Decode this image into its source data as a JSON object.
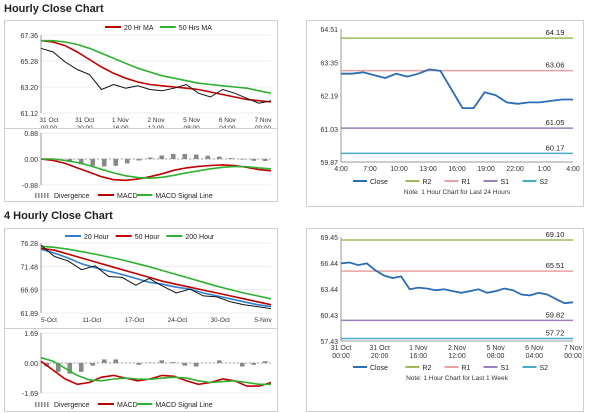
{
  "sections": [
    {
      "title": "Hourly Close Chart"
    },
    {
      "title": "4 Hourly Close Chart"
    }
  ],
  "colors": {
    "close": "#2a6db5",
    "ma20": "#c00000",
    "ma50": "#30b030",
    "hour20": "#2f7fd0",
    "r2": "#9bbb59",
    "r1": "#e8a0a0",
    "s1": "#9b7fc0",
    "s2": "#4bacc6",
    "divergence": "#888888"
  },
  "chart_data": [
    {
      "type": "line",
      "panel": "hourly-price",
      "legend": [
        "20 Hr MA",
        "50 Hrs MA"
      ],
      "x_ticks": [
        "31 Oct\n00:00",
        "31 Oct\n20:00",
        "1 Nov\n16:00",
        "2 Nov\n12:00",
        "5 Nov\n08:00",
        "6 Nov\n04:00",
        "7 Nov\n00:00"
      ],
      "y_ticks": [
        67.36,
        65.28,
        63.2,
        61.12
      ],
      "ylim": [
        61.12,
        67.36
      ],
      "series": [
        {
          "name": "20 Hr MA",
          "values": [
            66.9,
            66.8,
            66.5,
            66.0,
            65.4,
            64.8,
            64.3,
            63.9,
            63.6,
            63.4,
            63.3,
            63.2,
            63.1,
            63.0,
            62.8,
            62.6,
            62.4,
            62.2,
            62.1,
            62.0
          ]
        },
        {
          "name": "50 Hrs MA",
          "values": [
            66.9,
            66.9,
            66.8,
            66.6,
            66.3,
            65.9,
            65.5,
            65.1,
            64.7,
            64.4,
            64.1,
            63.9,
            63.7,
            63.5,
            63.4,
            63.3,
            63.2,
            63.1,
            62.9,
            62.7
          ]
        },
        {
          "values": [
            66.3,
            66.0,
            65.2,
            64.6,
            64.2,
            63.0,
            63.4,
            63.1,
            63.3,
            63.0,
            62.9,
            63.1,
            63.4,
            62.7,
            62.4,
            63.0,
            62.7,
            62.3,
            61.9,
            62.1
          ]
        }
      ]
    },
    {
      "type": "line",
      "panel": "hourly-macd",
      "legend": [
        "Divergence",
        "MACD",
        "MACD Signal Line"
      ],
      "y_ticks": [
        0.88,
        0.0,
        -0.88
      ],
      "ylim": [
        -0.88,
        0.88
      ],
      "series": [
        {
          "name": "MACD",
          "values": [
            0.0,
            -0.05,
            -0.15,
            -0.3,
            -0.45,
            -0.6,
            -0.7,
            -0.72,
            -0.68,
            -0.6,
            -0.5,
            -0.38,
            -0.3,
            -0.25,
            -0.22,
            -0.2,
            -0.22,
            -0.28,
            -0.36,
            -0.4
          ]
        },
        {
          "name": "MACD Signal Line",
          "values": [
            0.0,
            0.0,
            -0.05,
            -0.12,
            -0.22,
            -0.35,
            -0.47,
            -0.57,
            -0.63,
            -0.65,
            -0.62,
            -0.55,
            -0.47,
            -0.4,
            -0.33,
            -0.28,
            -0.25,
            -0.26,
            -0.3,
            -0.33
          ]
        },
        {
          "name": "Divergence",
          "values": [
            0.0,
            -0.05,
            -0.1,
            -0.18,
            -0.23,
            -0.25,
            -0.23,
            -0.15,
            -0.05,
            0.05,
            0.12,
            0.17,
            0.17,
            0.15,
            0.11,
            0.08,
            0.03,
            -0.02,
            -0.06,
            -0.07
          ]
        }
      ]
    },
    {
      "type": "line",
      "panel": "hourly-24h",
      "x_ticks": [
        "4:00",
        "7:00",
        "10:00",
        "13:00",
        "16:00",
        "19:00",
        "22:00",
        "1:00",
        "4:00"
      ],
      "y_ticks": [
        64.51,
        63.35,
        62.19,
        61.03,
        59.87
      ],
      "ylim": [
        59.87,
        64.51
      ],
      "levels": [
        {
          "name": "R2",
          "value": 64.19,
          "label": "64.19"
        },
        {
          "name": "R1",
          "value": 63.06,
          "label": "63.06"
        },
        {
          "name": "S1",
          "value": 61.05,
          "label": "61.05"
        },
        {
          "name": "S2",
          "value": 60.17,
          "label": "60.17"
        }
      ],
      "series": [
        {
          "name": "Close",
          "values": [
            62.95,
            62.95,
            63.0,
            62.9,
            62.8,
            62.95,
            62.85,
            62.95,
            63.1,
            63.05,
            62.4,
            61.75,
            61.75,
            62.3,
            62.2,
            61.95,
            61.9,
            61.95,
            61.95,
            62.0,
            62.05,
            62.05
          ]
        }
      ],
      "legend": [
        "Close",
        "R2",
        "R1",
        "S1",
        "S2"
      ],
      "note": "Note: 1 Hour Chart for Last 24 Hours"
    },
    {
      "type": "line",
      "panel": "4hourly-price",
      "legend": [
        "20 Hour",
        "50 Hour",
        "200 Hour"
      ],
      "x_ticks": [
        "5-Oct",
        "11-Oct",
        "17-Oct",
        "24-Oct",
        "30-Oct",
        "5-Nov"
      ],
      "y_ticks": [
        76.28,
        71.48,
        66.69,
        61.89
      ],
      "ylim": [
        61.89,
        76.28
      ],
      "series": [
        {
          "name": "20 Hour",
          "values": [
            75.0,
            74.2,
            73.2,
            72.0,
            71.2,
            70.5,
            69.8,
            69.0,
            68.2,
            67.8,
            67.2,
            66.8,
            66.0,
            65.4,
            64.8,
            64.2,
            63.6,
            63.2
          ]
        },
        {
          "name": "50 Hour",
          "values": [
            75.2,
            74.8,
            74.0,
            73.2,
            72.4,
            71.6,
            70.8,
            70.0,
            69.2,
            68.4,
            67.8,
            67.2,
            66.6,
            66.0,
            65.4,
            64.8,
            64.2,
            63.6
          ]
        },
        {
          "name": "200 Hour",
          "values": [
            75.6,
            75.4,
            75.0,
            74.5,
            74.0,
            73.4,
            72.8,
            72.1,
            71.4,
            70.6,
            69.8,
            69.0,
            68.2,
            67.4,
            66.7,
            66.0,
            65.4,
            64.8
          ]
        },
        {
          "values": [
            75.8,
            73.5,
            72.6,
            70.8,
            71.6,
            69.4,
            69.2,
            67.6,
            69.0,
            67.4,
            66.0,
            66.8,
            65.4,
            65.2,
            64.2,
            63.6,
            63.2,
            62.8
          ]
        }
      ]
    },
    {
      "type": "line",
      "panel": "4hourly-macd",
      "legend": [
        "Divergence",
        "MACD",
        "MACD Signal Line"
      ],
      "y_ticks": [
        1.69,
        0.0,
        -1.69
      ],
      "ylim": [
        -1.69,
        1.69
      ],
      "series": [
        {
          "name": "MACD",
          "values": [
            0.1,
            -0.4,
            -0.9,
            -1.2,
            -1.1,
            -0.8,
            -0.7,
            -0.85,
            -1.0,
            -0.9,
            -0.7,
            -0.75,
            -1.0,
            -1.2,
            -1.1,
            -0.9,
            -1.0,
            -1.3,
            -1.3,
            -1.1
          ]
        },
        {
          "name": "MACD Signal Line",
          "values": [
            0.3,
            0.1,
            -0.3,
            -0.7,
            -0.95,
            -1.0,
            -0.9,
            -0.85,
            -0.9,
            -0.92,
            -0.85,
            -0.8,
            -0.85,
            -1.0,
            -1.1,
            -1.05,
            -1.0,
            -1.1,
            -1.2,
            -1.2
          ]
        },
        {
          "name": "Divergence",
          "values": [
            -0.2,
            -0.5,
            -0.6,
            -0.5,
            -0.15,
            0.2,
            0.2,
            0.0,
            -0.1,
            0.02,
            0.15,
            0.05,
            -0.15,
            -0.2,
            0.0,
            0.15,
            0.0,
            -0.2,
            -0.1,
            0.1
          ]
        }
      ]
    },
    {
      "type": "line",
      "panel": "4hourly-week",
      "x_ticks": [
        "31 Oct\n00:00",
        "31 Oct\n20:00",
        "1 Nov\n16:00",
        "2 Nov\n12:00",
        "5 Nov\n08:00",
        "6 Nov\n04:00",
        "7 Nov\n00:00"
      ],
      "y_ticks": [
        69.45,
        66.44,
        63.44,
        60.43,
        57.43
      ],
      "ylim": [
        57.43,
        69.45
      ],
      "levels": [
        {
          "name": "R2",
          "value": 69.1,
          "label": "69.10"
        },
        {
          "name": "R1",
          "value": 65.51,
          "label": "65.51"
        },
        {
          "name": "S1",
          "value": 59.82,
          "label": "59.82"
        },
        {
          "name": "S2",
          "value": 57.72,
          "label": "57.72"
        }
      ],
      "series": [
        {
          "name": "Close",
          "values": [
            66.4,
            66.5,
            66.2,
            66.4,
            65.6,
            65.0,
            64.7,
            64.9,
            63.4,
            63.6,
            63.5,
            63.3,
            63.4,
            63.2,
            63.0,
            63.2,
            63.4,
            63.0,
            63.2,
            63.5,
            63.3,
            62.8,
            62.7,
            63.0,
            62.8,
            62.3,
            61.8,
            61.9
          ]
        }
      ],
      "legend": [
        "Close",
        "R2",
        "R1",
        "S1",
        "S2"
      ],
      "note": "Note: 1 Hour Chart for Last 1 Week"
    }
  ]
}
